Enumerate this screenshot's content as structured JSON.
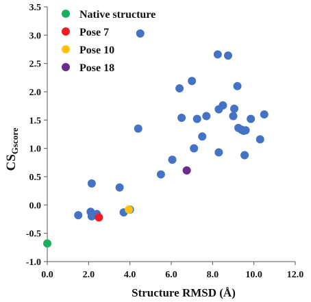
{
  "chart_data": {
    "type": "scatter",
    "xlabel": "Structure RMSD (Å)",
    "ylabel_main": "CS",
    "ylabel_sub": "Gscore",
    "xlim": [
      0.0,
      12.0
    ],
    "ylim": [
      -1.0,
      3.5
    ],
    "xticks": [
      "0.0",
      "2.0",
      "4.0",
      "6.0",
      "8.0",
      "10.0",
      "12.0"
    ],
    "yticks": [
      "-1.0",
      "-0.5",
      "0.0",
      "0.5",
      "1.0",
      "1.5",
      "2.0",
      "2.5",
      "3.0",
      "3.5"
    ],
    "grid": false,
    "legend_position": "top-left",
    "background_color": "#4472C4",
    "background_points": [
      {
        "x": 1.5,
        "y": -0.18
      },
      {
        "x": 2.1,
        "y": -0.12
      },
      {
        "x": 2.15,
        "y": -0.2
      },
      {
        "x": 2.3,
        "y": -0.18
      },
      {
        "x": 2.4,
        "y": -0.16
      },
      {
        "x": 2.15,
        "y": 0.38
      },
      {
        "x": 3.5,
        "y": 0.31
      },
      {
        "x": 3.7,
        "y": -0.13
      },
      {
        "x": 4.0,
        "y": -0.08
      },
      {
        "x": 4.4,
        "y": 1.35
      },
      {
        "x": 4.5,
        "y": 3.03
      },
      {
        "x": 5.5,
        "y": 0.54
      },
      {
        "x": 6.05,
        "y": 0.8
      },
      {
        "x": 6.4,
        "y": 2.06
      },
      {
        "x": 6.5,
        "y": 1.54
      },
      {
        "x": 7.0,
        "y": 2.19
      },
      {
        "x": 7.1,
        "y": 1.0
      },
      {
        "x": 7.25,
        "y": 1.52
      },
      {
        "x": 7.5,
        "y": 1.21
      },
      {
        "x": 7.7,
        "y": 1.57
      },
      {
        "x": 8.25,
        "y": 2.66
      },
      {
        "x": 8.3,
        "y": 1.69
      },
      {
        "x": 8.3,
        "y": 0.93
      },
      {
        "x": 8.5,
        "y": 1.76
      },
      {
        "x": 8.75,
        "y": 2.64
      },
      {
        "x": 9.0,
        "y": 1.57
      },
      {
        "x": 9.05,
        "y": 1.7
      },
      {
        "x": 9.2,
        "y": 2.1
      },
      {
        "x": 9.25,
        "y": 1.36
      },
      {
        "x": 9.4,
        "y": 1.33
      },
      {
        "x": 9.5,
        "y": 1.31
      },
      {
        "x": 9.6,
        "y": 1.32
      },
      {
        "x": 9.55,
        "y": 0.88
      },
      {
        "x": 9.85,
        "y": 1.52
      },
      {
        "x": 10.3,
        "y": 1.16
      },
      {
        "x": 10.5,
        "y": 1.6
      }
    ],
    "series": [
      {
        "name": "Native structure",
        "color": "#1AAF5D",
        "points": [
          {
            "x": 0.0,
            "y": -0.68
          }
        ]
      },
      {
        "name": "Pose 7",
        "color": "#EE1C25",
        "points": [
          {
            "x": 2.5,
            "y": -0.22
          }
        ]
      },
      {
        "name": "Pose 10",
        "color": "#FFC20E",
        "points": [
          {
            "x": 3.95,
            "y": -0.08
          }
        ]
      },
      {
        "name": "Pose 18",
        "color": "#6A2C91",
        "points": [
          {
            "x": 6.75,
            "y": 0.61
          }
        ]
      }
    ]
  }
}
